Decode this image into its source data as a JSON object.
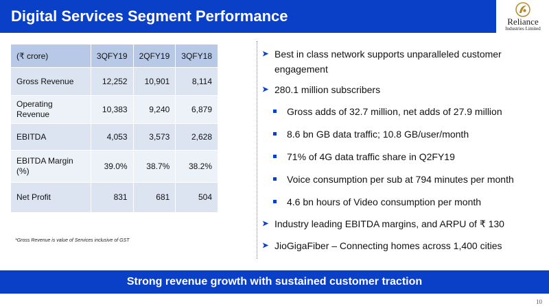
{
  "title": "Digital Services Segment Performance",
  "logo": {
    "name": "Reliance",
    "sub": "Industries Limited"
  },
  "table": {
    "headers": [
      "(₹ crore)",
      "3QFY19",
      "2QFY19",
      "3QFY18"
    ],
    "rows": [
      {
        "label": "Gross Revenue",
        "values": [
          "12,252",
          "10,901",
          "8,114"
        ]
      },
      {
        "label": "Operating Revenue",
        "values": [
          "10,383",
          "9,240",
          "6,879"
        ]
      },
      {
        "label": "EBITDA",
        "values": [
          "4,053",
          "3,573",
          "2,628"
        ]
      },
      {
        "label": "EBITDA Margin (%)",
        "values": [
          "39.0%",
          "38.7%",
          "38.2%"
        ]
      },
      {
        "label": "Net Profit",
        "values": [
          "831",
          "681",
          "504"
        ]
      }
    ]
  },
  "footnote": "*Gross Revenue is value of Services inclusive of GST",
  "bullets": {
    "b1": "Best in class network supports unparalleled customer engagement",
    "b2": "280.1 million subscribers",
    "s1": "Gross adds of 32.7 million, net adds of 27.9 million",
    "s2": "8.6 bn GB data traffic; 10.8 GB/user/month",
    "s3": "71% of 4G data traffic share in Q2FY19",
    "s4": "Voice consumption per sub at 794 minutes per month",
    "s5": "4.6 bn hours of Video consumption per month",
    "b3": "Industry leading EBITDA margins, and ARPU of ₹ 130",
    "b4": "JioGigaFiber – Connecting homes across 1,400 cities"
  },
  "banner": "Strong revenue growth with sustained customer traction",
  "page_number": "10",
  "colors": {
    "accent": "#0a3fc8",
    "header_cell": "#b8c9e8",
    "row_dark": "#dce3f1",
    "row_light": "#edf1f8"
  }
}
